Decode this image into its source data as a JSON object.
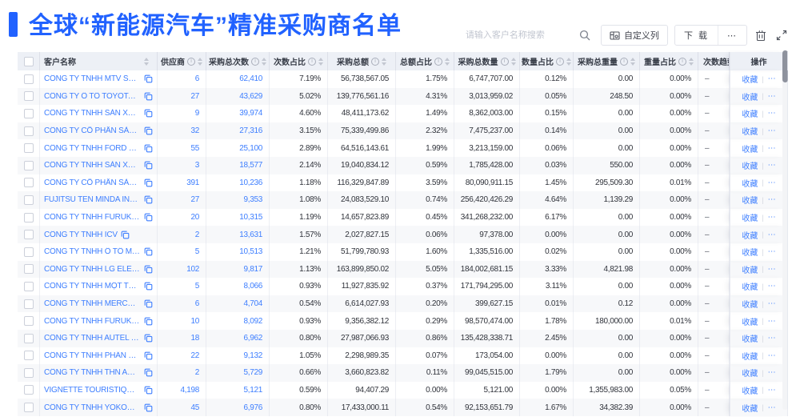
{
  "header": {
    "title": "全球“新能源汽车”精准采购商名单"
  },
  "toolbar": {
    "search_placeholder": "请输入客户名称搜索",
    "customize_columns_label": "自定义列",
    "download_label": "下 载",
    "more_label": "⋯"
  },
  "colors": {
    "accent_blue": "#2162ff",
    "link_blue": "#3d7eff",
    "header_bg": "#edf0f6",
    "stripe_bg": "#f7f8fa"
  },
  "table": {
    "columns": [
      {
        "key": "checkbox",
        "label": "",
        "info": false,
        "sort": false
      },
      {
        "key": "name",
        "label": "客户名称",
        "info": false,
        "sort": true
      },
      {
        "key": "supplier",
        "label": "供应商",
        "info": true,
        "sort": true
      },
      {
        "key": "purchases",
        "label": "采购总次数",
        "info": true,
        "sort": true
      },
      {
        "key": "purchases_pct",
        "label": "次数占比",
        "info": true,
        "sort": true
      },
      {
        "key": "amount",
        "label": "采购总额",
        "info": true,
        "sort": true
      },
      {
        "key": "amount_pct",
        "label": "总额占比",
        "info": true,
        "sort": true
      },
      {
        "key": "quantity",
        "label": "采购总数量",
        "info": true,
        "sort": true
      },
      {
        "key": "quantity_pct",
        "label": "数量占比",
        "info": true,
        "sort": true
      },
      {
        "key": "weight",
        "label": "采购总重量",
        "info": true,
        "sort": true
      },
      {
        "key": "weight_pct",
        "label": "重量占比",
        "info": true,
        "sort": true
      },
      {
        "key": "trend",
        "label": "次数趋势",
        "info": false,
        "sort": false
      },
      {
        "key": "ops",
        "label": "操作",
        "info": false,
        "sort": false
      }
    ],
    "ops": {
      "favorite": "收藏",
      "more": "⋯"
    },
    "rows": [
      {
        "name": "CÔNG TY TNHH MTV SẢN XUẤ...",
        "supplier": "6",
        "purchases": "62,410",
        "purchases_pct": "7.19%",
        "amount": "56,738,567.05",
        "amount_pct": "1.75%",
        "quantity": "6,747,707.00",
        "quantity_pct": "0.12%",
        "weight": "0.00",
        "weight_pct": "0.00%",
        "trend": "–"
      },
      {
        "name": "CÔNG TY Ô TÔ TOYOTA VIỆT ...",
        "supplier": "27",
        "purchases": "43,629",
        "purchases_pct": "5.02%",
        "amount": "139,776,561.16",
        "amount_pct": "4.31%",
        "quantity": "3,013,959.02",
        "quantity_pct": "0.05%",
        "weight": "248.50",
        "weight_pct": "0.00%",
        "trend": "–"
      },
      {
        "name": "CÔNG TY TNHH SẢN XUẤT VÀ ...",
        "supplier": "9",
        "purchases": "39,974",
        "purchases_pct": "4.60%",
        "amount": "48,411,173.62",
        "amount_pct": "1.49%",
        "quantity": "8,362,003.00",
        "quantity_pct": "0.15%",
        "weight": "0.00",
        "weight_pct": "0.00%",
        "trend": "–"
      },
      {
        "name": "CÔNG TY CỔ PHẦN SẢN XUẤT...",
        "supplier": "32",
        "purchases": "27,316",
        "purchases_pct": "3.15%",
        "amount": "75,339,499.86",
        "amount_pct": "2.32%",
        "quantity": "7,475,237.00",
        "quantity_pct": "0.14%",
        "weight": "0.00",
        "weight_pct": "0.00%",
        "trend": "–"
      },
      {
        "name": "CÔNG TY TNHH FORD VIỆT NAM",
        "supplier": "55",
        "purchases": "25,100",
        "purchases_pct": "2.89%",
        "amount": "64,516,143.61",
        "amount_pct": "1.99%",
        "quantity": "3,213,159.00",
        "quantity_pct": "0.06%",
        "weight": "0.00",
        "weight_pct": "0.00%",
        "trend": "–"
      },
      {
        "name": "CÔNG TY TNHH SẢN XUẤT VÀ ...",
        "supplier": "3",
        "purchases": "18,577",
        "purchases_pct": "2.14%",
        "amount": "19,040,834.12",
        "amount_pct": "0.59%",
        "quantity": "1,785,428.00",
        "quantity_pct": "0.03%",
        "weight": "550.00",
        "weight_pct": "0.00%",
        "trend": "–"
      },
      {
        "name": "CÔNG TY CỔ PHẦN SẢN XUẤT...",
        "supplier": "391",
        "purchases": "10,236",
        "purchases_pct": "1.18%",
        "amount": "116,329,847.89",
        "amount_pct": "3.59%",
        "quantity": "80,090,911.15",
        "quantity_pct": "1.45%",
        "weight": "295,509.30",
        "weight_pct": "0.01%",
        "trend": "–"
      },
      {
        "name": "FUJITSU TEN MINDA INDIA PVT...",
        "supplier": "27",
        "purchases": "9,353",
        "purchases_pct": "1.08%",
        "amount": "24,083,529.10",
        "amount_pct": "0.74%",
        "quantity": "256,420,426.29",
        "quantity_pct": "4.64%",
        "weight": "1,139.29",
        "weight_pct": "0.00%",
        "trend": "–"
      },
      {
        "name": "CÔNG TY TNHH FURUKAWA A...",
        "supplier": "20",
        "purchases": "10,315",
        "purchases_pct": "1.19%",
        "amount": "14,657,823.89",
        "amount_pct": "0.45%",
        "quantity": "341,268,232.00",
        "quantity_pct": "6.17%",
        "weight": "0.00",
        "weight_pct": "0.00%",
        "trend": "–"
      },
      {
        "name": "CÔNG TY TNHH ICV",
        "supplier": "2",
        "purchases": "13,631",
        "purchases_pct": "1.57%",
        "amount": "2,027,827.15",
        "amount_pct": "0.06%",
        "quantity": "97,378.00",
        "quantity_pct": "0.00%",
        "weight": "0.00",
        "weight_pct": "0.00%",
        "trend": "–"
      },
      {
        "name": "CÔNG TY TNHH Ô TÔ MITSUBI...",
        "supplier": "5",
        "purchases": "10,513",
        "purchases_pct": "1.21%",
        "amount": "51,799,780.93",
        "amount_pct": "1.60%",
        "quantity": "1,335,516.00",
        "quantity_pct": "0.02%",
        "weight": "0.00",
        "weight_pct": "0.00%",
        "trend": "–"
      },
      {
        "name": "CÔNG TY TNHH LG ELECTRON...",
        "supplier": "102",
        "purchases": "9,817",
        "purchases_pct": "1.13%",
        "amount": "163,899,850.02",
        "amount_pct": "5.05%",
        "quantity": "184,002,681.15",
        "quantity_pct": "3.33%",
        "weight": "4,821.98",
        "weight_pct": "0.00%",
        "trend": "–"
      },
      {
        "name": "CÔNG TY TNHH MỘT THÀNH V...",
        "supplier": "5",
        "purchases": "8,066",
        "purchases_pct": "0.93%",
        "amount": "11,927,835.92",
        "amount_pct": "0.37%",
        "quantity": "171,794,295.00",
        "quantity_pct": "3.11%",
        "weight": "0.00",
        "weight_pct": "0.00%",
        "trend": "–"
      },
      {
        "name": "CÔNG TY TNHH MERCEDES–B...",
        "supplier": "6",
        "purchases": "4,704",
        "purchases_pct": "0.54%",
        "amount": "6,614,027.93",
        "amount_pct": "0.20%",
        "quantity": "399,627.15",
        "quantity_pct": "0.01%",
        "weight": "0.12",
        "weight_pct": "0.00%",
        "trend": "–"
      },
      {
        "name": "CÔNG TY TNHH FURUKAWA A...",
        "supplier": "10",
        "purchases": "8,092",
        "purchases_pct": "0.93%",
        "amount": "9,356,382.12",
        "amount_pct": "0.29%",
        "quantity": "98,570,474.00",
        "quantity_pct": "1.78%",
        "weight": "180,000.00",
        "weight_pct": "0.01%",
        "trend": "–"
      },
      {
        "name": "CÔNG TY TNHH AUTEL VIỆT N...",
        "supplier": "18",
        "purchases": "6,962",
        "purchases_pct": "0.80%",
        "amount": "27,987,066.93",
        "amount_pct": "0.86%",
        "quantity": "135,428,338.71",
        "quantity_pct": "2.45%",
        "weight": "0.00",
        "weight_pct": "0.00%",
        "trend": "–"
      },
      {
        "name": "CÔNG TY TNHH PHÂN PHỐI T...",
        "supplier": "22",
        "purchases": "9,132",
        "purchases_pct": "1.05%",
        "amount": "2,298,989.35",
        "amount_pct": "0.07%",
        "quantity": "173,054.00",
        "quantity_pct": "0.00%",
        "weight": "0.00",
        "weight_pct": "0.00%",
        "trend": "–"
      },
      {
        "name": "CÔNG TY TNHH THN AUTOPAR...",
        "supplier": "2",
        "purchases": "5,729",
        "purchases_pct": "0.66%",
        "amount": "3,660,823.82",
        "amount_pct": "0.11%",
        "quantity": "99,045,515.00",
        "quantity_pct": "1.79%",
        "weight": "0.00",
        "weight_pct": "0.00%",
        "trend": "–"
      },
      {
        "name": "VIGNETTE TOURISTIQUE G UNI...",
        "supplier": "4,198",
        "purchases": "5,121",
        "purchases_pct": "0.59%",
        "amount": "94,407.29",
        "amount_pct": "0.00%",
        "quantity": "5,121.00",
        "quantity_pct": "0.00%",
        "weight": "1,355,983.00",
        "weight_pct": "0.05%",
        "trend": "–"
      },
      {
        "name": "CÔNG TY TNHH YOKOWO VIỆT...",
        "supplier": "45",
        "purchases": "6,976",
        "purchases_pct": "0.80%",
        "amount": "17,433,000.11",
        "amount_pct": "0.54%",
        "quantity": "92,153,651.79",
        "quantity_pct": "1.67%",
        "weight": "34,382.39",
        "weight_pct": "0.00%",
        "trend": "–"
      }
    ]
  }
}
